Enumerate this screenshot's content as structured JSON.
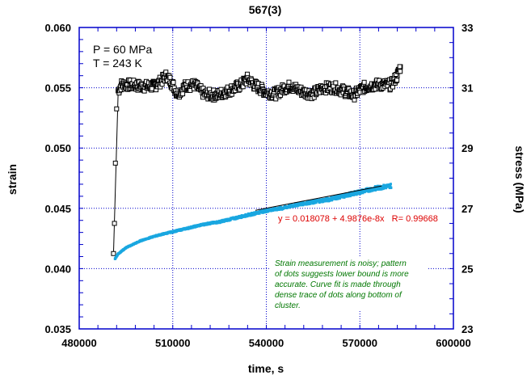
{
  "chart_data": {
    "type": "scatter",
    "title": "567(3)",
    "xlabel": "time, s",
    "ylabel": "strain",
    "y2label": "stress (MPa)",
    "xlim": [
      480000,
      600000
    ],
    "ylim": [
      0.035,
      0.06
    ],
    "y2lim": [
      23,
      33
    ],
    "grid": true,
    "x_ticks": [
      "480000",
      "510000",
      "540000",
      "570000",
      "600000"
    ],
    "x_tick_values": [
      480000,
      510000,
      540000,
      570000,
      600000
    ],
    "y_ticks": [
      "0.035",
      "0.040",
      "0.045",
      "0.050",
      "0.055",
      "0.060"
    ],
    "y_tick_values": [
      0.035,
      0.04,
      0.045,
      0.05,
      0.055,
      0.06
    ],
    "y2_ticks": [
      "23",
      "25",
      "27",
      "29",
      "31",
      "33"
    ],
    "y2_tick_values": [
      23,
      25,
      27,
      29,
      31,
      33
    ],
    "annotations": {
      "pressure": "P = 60 MPa",
      "temperature": "T = 243 K",
      "fit_equation": "y = 0.018078 + 4.9876e-8x   R= 0.99668",
      "note_lines": [
        "Strain measurement is noisy; pattern",
        "of dots suggests lower bound is more",
        "accurate.  Curve fit is made through",
        "dense trace of dots along bottom of",
        "cluster."
      ]
    },
    "fit": {
      "intercept": 0.018078,
      "slope": 4.9876e-08,
      "R": 0.99668,
      "x_range": [
        536500,
        577000
      ]
    },
    "series": [
      {
        "name": "stress",
        "axis": "right",
        "color": "#000000",
        "marker": "open-square",
        "points": [
          [
            491000,
            25.5
          ],
          [
            491300,
            26.5
          ],
          [
            491600,
            28.5
          ],
          [
            492000,
            30.3
          ],
          [
            492500,
            30.9
          ],
          [
            493500,
            31.1
          ],
          [
            496000,
            31.1
          ],
          [
            500000,
            31.05
          ],
          [
            504000,
            31.05
          ],
          [
            506000,
            31.2
          ],
          [
            508000,
            31.4
          ],
          [
            510000,
            31.1
          ],
          [
            511500,
            30.8
          ],
          [
            514000,
            31.05
          ],
          [
            517000,
            31.1
          ],
          [
            520000,
            30.8
          ],
          [
            524000,
            30.75
          ],
          [
            528000,
            30.9
          ],
          [
            532000,
            31.1
          ],
          [
            534000,
            31.3
          ],
          [
            536000,
            31.1
          ],
          [
            540000,
            30.85
          ],
          [
            543000,
            30.8
          ],
          [
            546000,
            31.0
          ],
          [
            548000,
            31.05
          ],
          [
            552000,
            30.85
          ],
          [
            555000,
            30.8
          ],
          [
            558000,
            31.0
          ],
          [
            562000,
            31.0
          ],
          [
            566000,
            30.85
          ],
          [
            568000,
            30.75
          ],
          [
            571000,
            31.0
          ],
          [
            575000,
            31.1
          ],
          [
            580000,
            31.1
          ],
          [
            582000,
            31.4
          ],
          [
            583000,
            31.7
          ]
        ]
      },
      {
        "name": "strain",
        "axis": "left",
        "color": "#1aa7e0",
        "marker": "dot",
        "points": [
          [
            491500,
            0.0408
          ],
          [
            492500,
            0.0412
          ],
          [
            495000,
            0.0417
          ],
          [
            500000,
            0.0423
          ],
          [
            505000,
            0.0427
          ],
          [
            510000,
            0.043
          ],
          [
            515000,
            0.0433
          ],
          [
            520000,
            0.0436
          ],
          [
            525000,
            0.0438
          ],
          [
            530000,
            0.0441
          ],
          [
            535000,
            0.0444
          ],
          [
            540000,
            0.0447
          ],
          [
            545000,
            0.0449
          ],
          [
            550000,
            0.0452
          ],
          [
            555000,
            0.0454
          ],
          [
            560000,
            0.0456
          ],
          [
            565000,
            0.0459
          ],
          [
            570000,
            0.0462
          ],
          [
            575000,
            0.0465
          ],
          [
            580000,
            0.0467
          ]
        ]
      }
    ]
  }
}
